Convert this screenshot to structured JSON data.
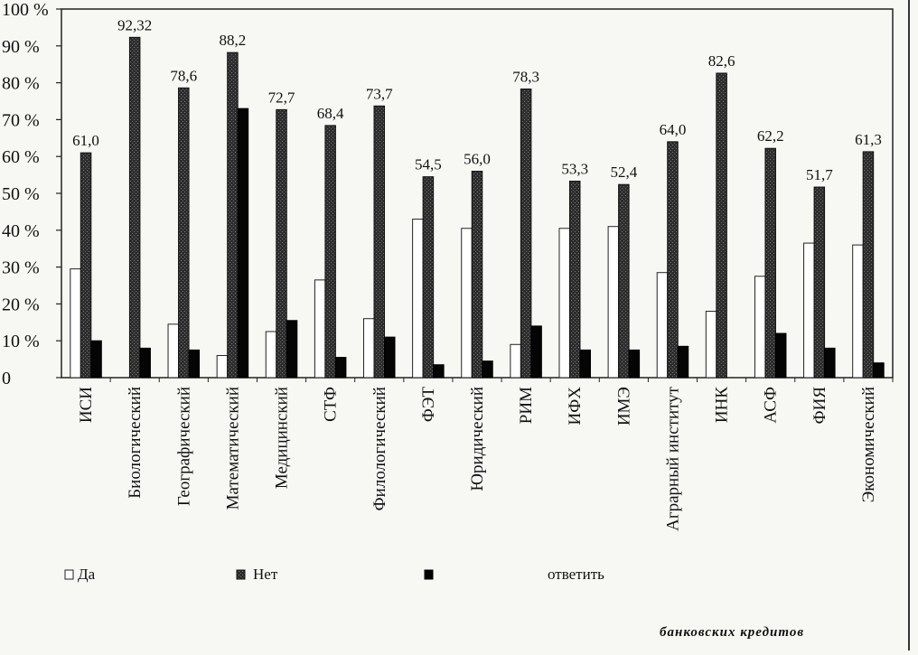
{
  "chart_data": {
    "type": "bar",
    "title": "",
    "xlabel": "",
    "ylabel": "",
    "ylim": [
      0,
      100
    ],
    "yticks": [
      "0",
      "10 %",
      "20 %",
      "30 %",
      "40 %",
      "50 %",
      "60 %",
      "70 %",
      "80 %",
      "90 %",
      "100 %"
    ],
    "legend_position": "bottom",
    "categories": [
      "ИСИ",
      "Биологический",
      "Географический",
      "Математический",
      "Медицинский",
      "СТФ",
      "Филологический",
      "ФЭТ",
      "Юридический",
      "РИМ",
      "ИФХ",
      "ИМЭ",
      "Аграрный институт",
      "ИНК",
      "АСФ",
      "ФИЯ",
      "Экономический"
    ],
    "series": [
      {
        "name": "Да",
        "color": "#ffffff",
        "values": [
          29.5,
          0,
          14.5,
          6.0,
          12.5,
          26.5,
          16.0,
          43.0,
          40.5,
          9.0,
          40.5,
          41.0,
          28.5,
          18.0,
          27.5,
          36.5,
          36.0
        ]
      },
      {
        "name": "Нет",
        "color": "#3a3a3a",
        "values": [
          61.0,
          92.32,
          78.6,
          88.2,
          72.7,
          68.4,
          73.7,
          54.5,
          56.0,
          78.3,
          53.3,
          52.4,
          64.0,
          82.6,
          62.2,
          51.7,
          61.3
        ]
      },
      {
        "name": "",
        "label_visible_fragment": "ответить",
        "color": "#000000",
        "values": [
          10.0,
          8.0,
          7.5,
          73.0,
          15.5,
          5.5,
          11.0,
          3.5,
          4.5,
          14.0,
          7.5,
          7.5,
          8.5,
          0,
          12.0,
          8.0,
          4.0
        ]
      }
    ],
    "data_labels": [
      "61,0",
      "92,32",
      "78,6",
      "88,2",
      "72,7",
      "68,4",
      "73,7",
      "54,5",
      "56,0",
      "78,3",
      "53,3",
      "52,4",
      "64,0",
      "82,6",
      "62,2",
      "51,7",
      "61,3"
    ],
    "legend": {
      "da": "Да",
      "net": "Нет",
      "third_fragment": "ответить"
    }
  },
  "caption": "банковских кредитов"
}
